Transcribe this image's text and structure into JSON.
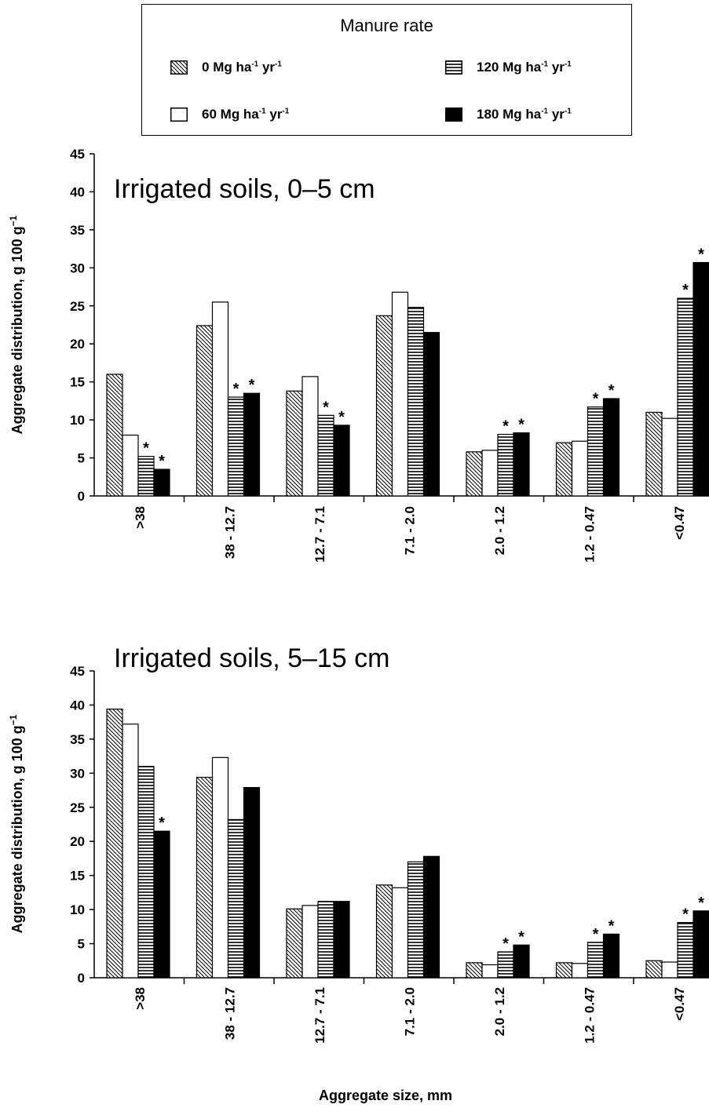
{
  "legend": {
    "title": "Manure rate",
    "items": [
      {
        "rate": "0",
        "unit": "Mg ha",
        "exp1": "-1",
        "unit2": " yr",
        "exp2": "-1",
        "pattern": "diagonal-hatch"
      },
      {
        "rate": "60",
        "unit": "Mg ha",
        "exp1": "-1",
        "unit2": " yr",
        "exp2": "-1",
        "pattern": "open"
      },
      {
        "rate": "120",
        "unit": "Mg ha",
        "exp1": "-1",
        "unit2": " yr",
        "exp2": "-1",
        "pattern": "horizontal-stripes"
      },
      {
        "rate": "180",
        "unit": "Mg ha",
        "exp1": "-1",
        "unit2": " yr",
        "exp2": "-1",
        "pattern": "solid-black"
      }
    ]
  },
  "shared_xlabel": "Aggregate size, mm",
  "significance_marker": "*",
  "chart_data": [
    {
      "type": "bar",
      "title": "Irrigated soils, 0–5 cm",
      "ylabel": "Aggregate distribution, g 100 g",
      "ylabel_sup": "−1",
      "ylim": [
        0,
        45
      ],
      "yticks": [
        "0",
        "5",
        "10",
        "15",
        "20",
        "25",
        "30",
        "35",
        "40",
        "45"
      ],
      "categories": [
        ">38",
        "38 - 12.7",
        "12.7 - 7.1",
        "7.1 - 2.0",
        "2.0 - 1.2",
        "1.2 - 0.47",
        "<0.47"
      ],
      "series": [
        {
          "name": "0 Mg ha-1 yr-1",
          "values": [
            16.0,
            22.4,
            13.8,
            23.7,
            5.8,
            7.0,
            11.0
          ],
          "significant": [
            false,
            false,
            false,
            false,
            false,
            false,
            false
          ]
        },
        {
          "name": "60 Mg ha-1 yr-1",
          "values": [
            8.0,
            25.5,
            15.7,
            26.8,
            6.0,
            7.2,
            10.2
          ],
          "significant": [
            false,
            false,
            false,
            false,
            false,
            false,
            false
          ]
        },
        {
          "name": "120 Mg ha-1 yr-1",
          "values": [
            5.2,
            13.0,
            10.6,
            24.8,
            8.1,
            11.7,
            26.0
          ],
          "significant": [
            true,
            true,
            true,
            false,
            true,
            true,
            true
          ]
        },
        {
          "name": "180 Mg ha-1 yr-1",
          "values": [
            3.5,
            13.5,
            9.3,
            21.5,
            8.3,
            12.8,
            30.7
          ],
          "significant": [
            true,
            true,
            true,
            false,
            true,
            true,
            true
          ]
        }
      ]
    },
    {
      "type": "bar",
      "title": "Irrigated soils, 5–15 cm",
      "ylabel": "Aggregate distribution, g 100 g",
      "ylabel_sup": "−1",
      "ylim": [
        0,
        45
      ],
      "yticks": [
        "0",
        "5",
        "10",
        "15",
        "20",
        "25",
        "30",
        "35",
        "40",
        "45"
      ],
      "categories": [
        ">38",
        "38 - 12.7",
        "12.7 - 7.1",
        "7.1 - 2.0",
        "2.0 - 1.2",
        "1.2 - 0.47",
        "<0.47"
      ],
      "series": [
        {
          "name": "0 Mg ha-1 yr-1",
          "values": [
            39.4,
            29.4,
            10.1,
            13.6,
            2.2,
            2.2,
            2.5
          ],
          "significant": [
            false,
            false,
            false,
            false,
            false,
            false,
            false
          ]
        },
        {
          "name": "60 Mg ha-1 yr-1",
          "values": [
            37.2,
            32.3,
            10.6,
            13.2,
            1.9,
            2.1,
            2.3
          ],
          "significant": [
            false,
            false,
            false,
            false,
            false,
            false,
            false
          ]
        },
        {
          "name": "120 Mg ha-1 yr-1",
          "values": [
            31.0,
            23.2,
            11.2,
            17.0,
            3.8,
            5.2,
            8.1
          ],
          "significant": [
            false,
            false,
            false,
            false,
            true,
            true,
            true
          ]
        },
        {
          "name": "180 Mg ha-1 yr-1",
          "values": [
            21.5,
            27.9,
            11.2,
            17.8,
            4.8,
            6.4,
            9.8
          ],
          "significant": [
            true,
            false,
            false,
            false,
            true,
            true,
            true
          ]
        }
      ]
    }
  ]
}
